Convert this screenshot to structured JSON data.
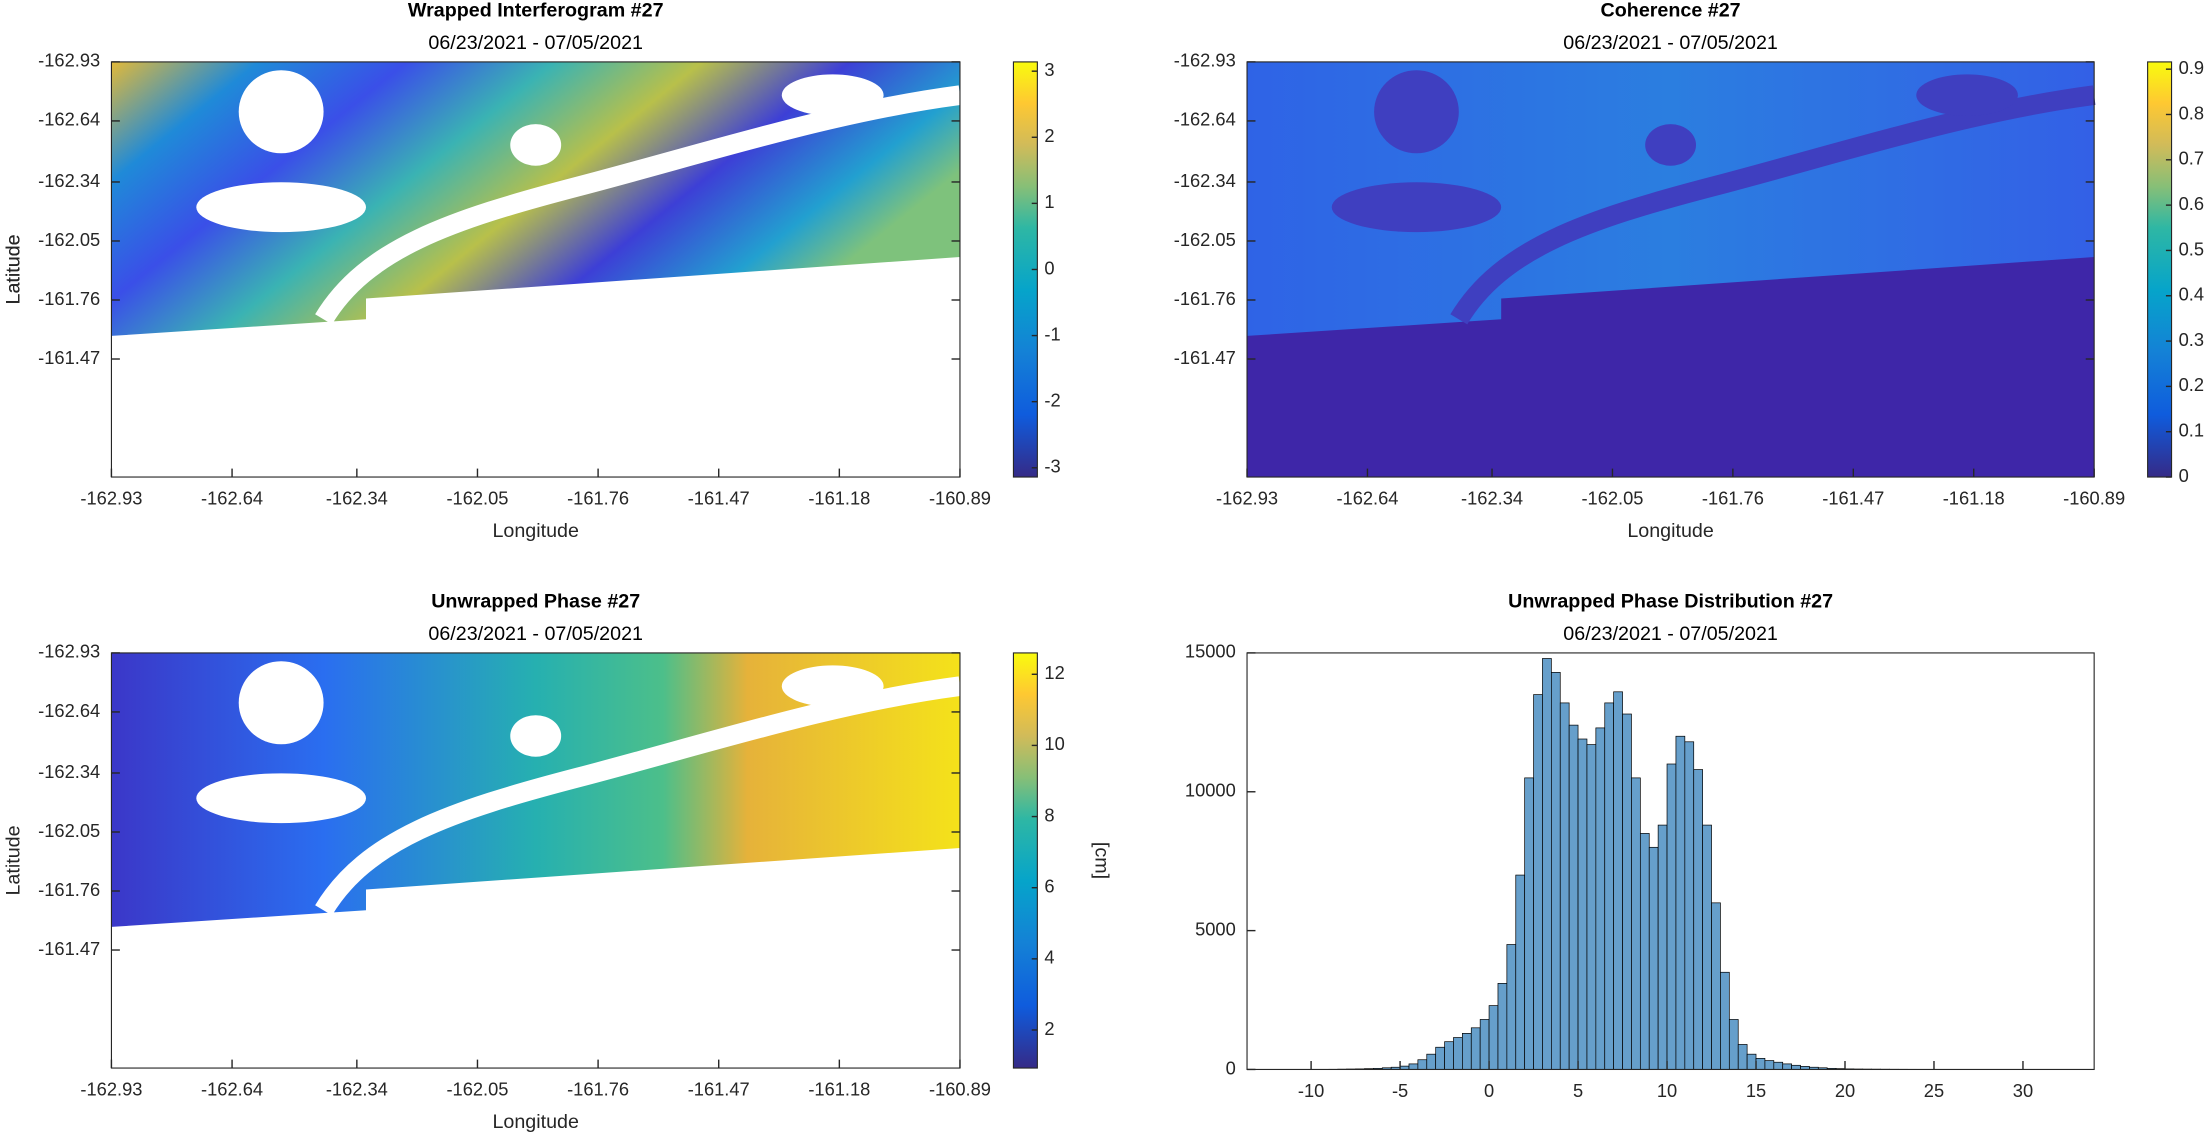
{
  "chart_data": [
    {
      "type": "image",
      "title": "Wrapped Interferogram #27",
      "subtitle": "06/23/2021 - 07/05/2021",
      "xlabel": "Longitude",
      "ylabel": "Latitude",
      "xlim": [
        -162.93,
        -160.89
      ],
      "ylim": [
        -160.89,
        -162.93
      ],
      "xticks": [
        -162.93,
        -162.64,
        -162.34,
        -162.05,
        -161.76,
        -161.47,
        -161.18,
        -160.89
      ],
      "yticks": [
        -162.93,
        -162.64,
        -162.34,
        -162.05,
        -161.76,
        -161.47
      ],
      "colormap": "parula",
      "clim": [
        -3.14,
        3.14
      ],
      "cticks": [
        -3,
        -2,
        -1,
        0,
        1,
        2,
        3
      ]
    },
    {
      "type": "image",
      "title": "Coherence #27",
      "subtitle": "06/23/2021 - 07/05/2021",
      "xlabel": "Longitude",
      "ylabel": "Latitude",
      "xlim": [
        -162.93,
        -160.89
      ],
      "ylim": [
        -160.89,
        -162.93
      ],
      "xticks": [
        -162.93,
        -162.64,
        -162.34,
        -162.05,
        -161.76,
        -161.47,
        -161.18,
        -160.89
      ],
      "yticks": [
        -162.93,
        -162.64,
        -162.34,
        -162.05,
        -161.76,
        -161.47
      ],
      "colormap": "parula",
      "clim": [
        0,
        0.916
      ],
      "cticks": [
        0,
        0.1,
        0.2,
        0.3,
        0.4,
        0.5,
        0.6,
        0.7,
        0.8,
        0.9
      ]
    },
    {
      "type": "image",
      "title": "Unwrapped Phase #27",
      "subtitle": "06/23/2021 - 07/05/2021",
      "xlabel": "Longitude",
      "ylabel": "Latitude",
      "xlim": [
        -162.93,
        -160.89
      ],
      "ylim": [
        -160.89,
        -162.93
      ],
      "xticks": [
        -162.93,
        -162.64,
        -162.34,
        -162.05,
        -161.76,
        -161.47,
        -161.18,
        -160.89
      ],
      "yticks": [
        -162.93,
        -162.64,
        -162.34,
        -162.05,
        -161.76,
        -161.47
      ],
      "colormap": "parula",
      "clim": [
        0.93,
        12.6
      ],
      "cticks": [
        2,
        4,
        6,
        8,
        10,
        12
      ],
      "clabel": "[cm]"
    },
    {
      "type": "histogram",
      "title": "Unwrapped Phase Distribution #27",
      "subtitle": "06/23/2021 - 07/05/2021",
      "color": "#669fcb",
      "edgecolor": "#000000",
      "xlim": [
        -13.6,
        34
      ],
      "ylim": [
        0,
        15000
      ],
      "xticks": [
        -10,
        -5,
        0,
        5,
        10,
        15,
        20,
        25,
        30
      ],
      "yticks": [
        0,
        5000,
        10000,
        15000
      ],
      "bins": [
        -12,
        -11.5,
        -11,
        -10.5,
        -10,
        -9.5,
        -9,
        -8.5,
        -8,
        -7.5,
        -7,
        -6.5,
        -6,
        -5.5,
        -5,
        -4.5,
        -4,
        -3.5,
        -3,
        -2.5,
        -2,
        -1.5,
        -1,
        -0.5,
        0,
        0.5,
        1,
        1.5,
        2,
        2.5,
        3,
        3.5,
        4,
        4.5,
        5,
        5.5,
        6,
        6.5,
        7,
        7.5,
        8,
        8.5,
        9,
        9.5,
        10,
        10.5,
        11,
        11.5,
        12,
        12.5,
        13,
        13.5,
        14,
        14.5,
        15,
        15.5,
        16,
        16.5,
        17,
        17.5,
        18,
        18.5,
        19,
        19.5,
        20,
        20.5,
        21,
        21.5,
        22,
        22.5,
        23,
        23.5,
        24,
        24.5,
        25,
        25.5,
        26,
        26.5,
        27,
        27.5,
        28,
        28.5,
        29,
        29.5,
        30,
        30.5,
        31,
        31.5,
        32
      ],
      "counts": [
        0,
        0,
        0,
        0,
        0,
        0,
        5,
        10,
        15,
        20,
        30,
        40,
        60,
        80,
        120,
        200,
        350,
        550,
        800,
        1000,
        1150,
        1300,
        1500,
        1800,
        2300,
        3100,
        4500,
        7000,
        10500,
        13500,
        14800,
        14300,
        13200,
        12400,
        11900,
        11700,
        12300,
        13200,
        13600,
        12800,
        10500,
        8500,
        8000,
        8800,
        11000,
        12000,
        11800,
        10800,
        8800,
        6000,
        3500,
        1800,
        900,
        550,
        400,
        320,
        260,
        200,
        150,
        110,
        80,
        60,
        40,
        30,
        20,
        15,
        12,
        10,
        8,
        6,
        5,
        4,
        3,
        3,
        2,
        2,
        1,
        1,
        1,
        1,
        0,
        0,
        0,
        0,
        0,
        0,
        0,
        0
      ]
    }
  ]
}
